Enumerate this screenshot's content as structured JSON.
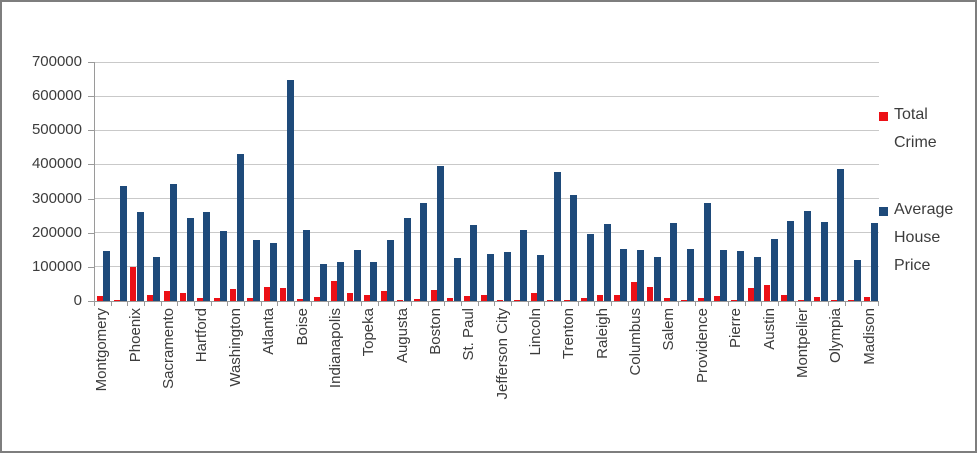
{
  "chart_data": {
    "type": "bar",
    "title": "",
    "note": "x-axis labels are shown for every other category; unlabeled categories appear as empty strings",
    "categories": [
      "Montgomery",
      "",
      "Phoenix",
      "",
      "Sacramento",
      "",
      "Hartford",
      "",
      "Washington",
      "",
      "Atlanta",
      "",
      "Boise",
      "",
      "Indianapolis",
      "",
      "Topeka",
      "",
      "Augusta",
      "",
      "Boston",
      "",
      "St. Paul",
      "",
      "Jefferson City",
      "",
      "Lincoln",
      "",
      "Trenton",
      "",
      "Raleigh",
      "",
      "Columbus",
      "",
      "Salem",
      "",
      "Providence",
      "",
      "Pierre",
      "",
      "Austin",
      "",
      "Montpelier",
      "",
      "Olympia",
      "",
      "Madison"
    ],
    "series": [
      {
        "name": "Total Crime",
        "color": "#ec1016",
        "values": [
          15000,
          2000,
          100000,
          17000,
          28000,
          24000,
          9000,
          8000,
          34000,
          9000,
          42000,
          39000,
          5000,
          11000,
          60000,
          23000,
          18000,
          28000,
          3000,
          5000,
          32000,
          9000,
          15000,
          18000,
          2000,
          3000,
          22000,
          2000,
          3000,
          10000,
          18000,
          18000,
          55000,
          40000,
          9000,
          4000,
          8000,
          15000,
          2000,
          38000,
          48000,
          17000,
          2000,
          12000,
          3000,
          3000,
          12000
        ]
      },
      {
        "name": "Average House Price",
        "color": "#1e4a7a",
        "values": [
          145000,
          338000,
          260000,
          128000,
          343000,
          242000,
          260000,
          205000,
          430000,
          178000,
          170000,
          646000,
          207000,
          109000,
          115000,
          148000,
          113000,
          178000,
          244000,
          287000,
          395000,
          125000,
          222000,
          137000,
          144000,
          208000,
          135000,
          379000,
          309000,
          197000,
          226000,
          151000,
          148000,
          129000,
          229000,
          151000,
          288000,
          148000,
          145000,
          130000,
          183000,
          233000,
          263000,
          232000,
          387000,
          121000,
          227000
        ]
      }
    ],
    "ylim": [
      0,
      700000
    ],
    "ytick_interval": 100000,
    "ytick_labels": [
      "0",
      "100000",
      "200000",
      "300000",
      "400000",
      "500000",
      "600000",
      "700000"
    ],
    "xlabel": "",
    "ylabel": "",
    "grid": "horizontal",
    "legend_position": "right",
    "x_label_rotation": -90
  },
  "legend": {
    "items": [
      {
        "label": "Total Crime",
        "color": "#ec1016"
      },
      {
        "label": "Average House Price",
        "color": "#1e4a7a"
      }
    ]
  }
}
